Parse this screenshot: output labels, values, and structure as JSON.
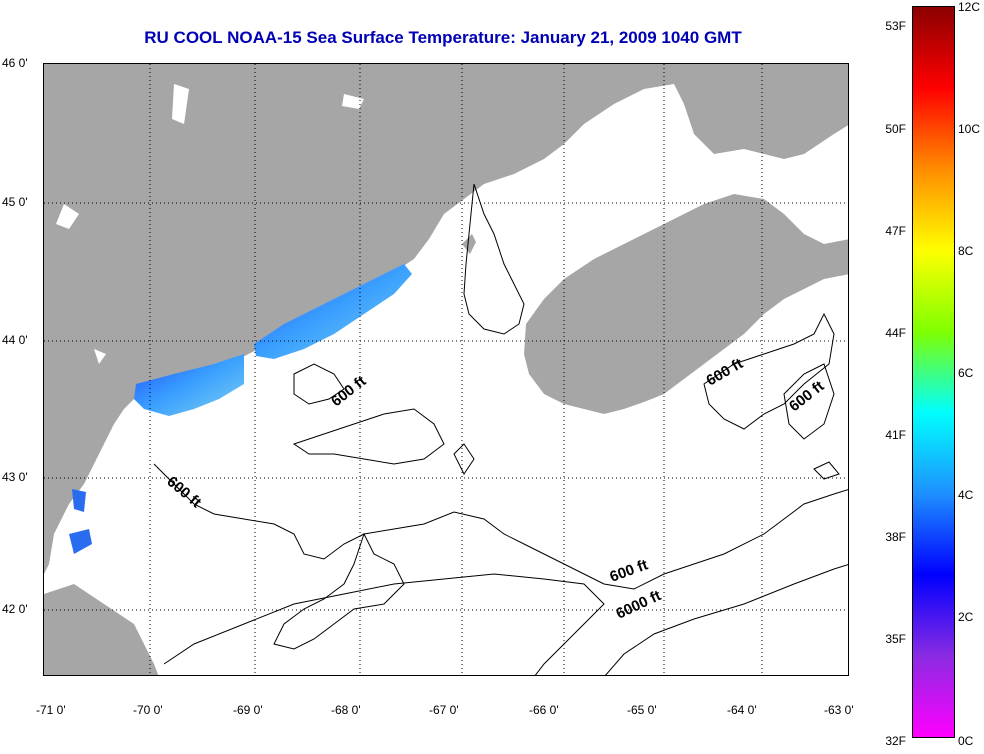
{
  "title": "RU COOL  NOAA-15  Sea Surface Temperature:  January 21, 2009 1040 GMT",
  "latitude_labels": [
    "46 0'",
    "45 0'",
    "44 0'",
    "43 0'",
    "42 0'"
  ],
  "longitude_labels": [
    "-71 0'",
    "-70 0'",
    "-69 0'",
    "-68 0'",
    "-67 0'",
    "-66 0'",
    "-65 0'",
    "-64 0'",
    "-63 0'"
  ],
  "colorbar": {
    "fahrenheit_labels": [
      "53F",
      "50F",
      "47F",
      "44F",
      "41F",
      "38F",
      "35F",
      "32F"
    ],
    "celsius_labels": [
      "12C",
      "10C",
      "8C",
      "6C",
      "4C",
      "2C",
      "0C"
    ],
    "colors": [
      "#8b0000",
      "#ff0000",
      "#ff8c00",
      "#ffff00",
      "#7fff00",
      "#00ffff",
      "#1e90ff",
      "#0000ff",
      "#8a2be2",
      "#ff00ff"
    ]
  },
  "contour_labels": [
    "600 ft",
    "600 ft",
    "600 ft",
    "600 ft",
    "600 ft",
    "6000 ft"
  ],
  "colors": {
    "land": "#a6a6a6",
    "water": "#ffffff",
    "title": "#0000b4"
  }
}
